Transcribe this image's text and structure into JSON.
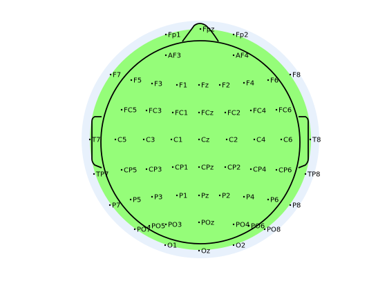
{
  "colors": {
    "background": "#ffffff",
    "halo": "#e8f1fc",
    "head_fill": "#95fd79",
    "outline": "#000000",
    "dot": "#000000",
    "text": "#000000"
  },
  "electrodes": [
    {
      "label": "Fpz",
      "row": "frontopolar",
      "col": "midline"
    },
    {
      "label": "Fp1",
      "row": "frontopolar",
      "col": "left-1"
    },
    {
      "label": "Fp2",
      "row": "frontopolar",
      "col": "right-1"
    },
    {
      "label": "AF3",
      "row": "anterior-frontal",
      "col": "left-2"
    },
    {
      "label": "AF4",
      "row": "anterior-frontal",
      "col": "right-2"
    },
    {
      "label": "F7",
      "row": "frontal",
      "col": "left-5"
    },
    {
      "label": "F5",
      "row": "frontal",
      "col": "left-4"
    },
    {
      "label": "F3",
      "row": "frontal",
      "col": "left-3"
    },
    {
      "label": "F1",
      "row": "frontal",
      "col": "left-2"
    },
    {
      "label": "Fz",
      "row": "frontal",
      "col": "midline"
    },
    {
      "label": "F2",
      "row": "frontal",
      "col": "right-2"
    },
    {
      "label": "F4",
      "row": "frontal",
      "col": "right-3"
    },
    {
      "label": "F6",
      "row": "frontal",
      "col": "right-4"
    },
    {
      "label": "F8",
      "row": "frontal",
      "col": "right-5"
    },
    {
      "label": "FC5",
      "row": "fronto-central",
      "col": "left-3"
    },
    {
      "label": "FC3",
      "row": "fronto-central",
      "col": "left-2"
    },
    {
      "label": "FC1",
      "row": "fronto-central",
      "col": "left-1"
    },
    {
      "label": "FCz",
      "row": "fronto-central",
      "col": "midline"
    },
    {
      "label": "FC2",
      "row": "fronto-central",
      "col": "right-1"
    },
    {
      "label": "FC4",
      "row": "fronto-central",
      "col": "right-2"
    },
    {
      "label": "FC6",
      "row": "fronto-central",
      "col": "right-3"
    },
    {
      "label": "T7",
      "row": "central",
      "col": "left-4"
    },
    {
      "label": "C5",
      "row": "central",
      "col": "left-3"
    },
    {
      "label": "C3",
      "row": "central",
      "col": "left-2"
    },
    {
      "label": "C1",
      "row": "central",
      "col": "left-1"
    },
    {
      "label": "Cz",
      "row": "central",
      "col": "midline"
    },
    {
      "label": "C2",
      "row": "central",
      "col": "right-1"
    },
    {
      "label": "C4",
      "row": "central",
      "col": "right-2"
    },
    {
      "label": "C6",
      "row": "central",
      "col": "right-3"
    },
    {
      "label": "T8",
      "row": "central",
      "col": "right-4"
    },
    {
      "label": "CP5",
      "row": "centro-parietal",
      "col": "left-3"
    },
    {
      "label": "CP3",
      "row": "centro-parietal",
      "col": "left-2"
    },
    {
      "label": "CP1",
      "row": "centro-parietal",
      "col": "left-1"
    },
    {
      "label": "CPz",
      "row": "centro-parietal",
      "col": "midline"
    },
    {
      "label": "CP2",
      "row": "centro-parietal",
      "col": "right-1"
    },
    {
      "label": "CP4",
      "row": "centro-parietal",
      "col": "right-2"
    },
    {
      "label": "CP6",
      "row": "centro-parietal",
      "col": "right-3"
    },
    {
      "label": "TP7",
      "row": "centro-parietal",
      "col": "left-4"
    },
    {
      "label": "TP8",
      "row": "centro-parietal",
      "col": "right-4"
    },
    {
      "label": "P7",
      "row": "parietal",
      "col": "left-5"
    },
    {
      "label": "P5",
      "row": "parietal",
      "col": "left-4"
    },
    {
      "label": "P3",
      "row": "parietal",
      "col": "left-3"
    },
    {
      "label": "P1",
      "row": "parietal",
      "col": "left-2"
    },
    {
      "label": "Pz",
      "row": "parietal",
      "col": "midline"
    },
    {
      "label": "P2",
      "row": "parietal",
      "col": "right-2"
    },
    {
      "label": "P4",
      "row": "parietal",
      "col": "right-3"
    },
    {
      "label": "P6",
      "row": "parietal",
      "col": "right-4"
    },
    {
      "label": "P8",
      "row": "parietal",
      "col": "right-5"
    },
    {
      "label": "PO7",
      "row": "parieto-occipital",
      "col": "left-5"
    },
    {
      "label": "PO5",
      "row": "parieto-occipital",
      "col": "left-4"
    },
    {
      "label": "PO3",
      "row": "parieto-occipital",
      "col": "left-3"
    },
    {
      "label": "POz",
      "row": "parieto-occipital",
      "col": "midline"
    },
    {
      "label": "PO4",
      "row": "parieto-occipital",
      "col": "right-3"
    },
    {
      "label": "PO6",
      "row": "parieto-occipital",
      "col": "right-4"
    },
    {
      "label": "PO8",
      "row": "parieto-occipital",
      "col": "right-5"
    },
    {
      "label": "O1",
      "row": "occipital",
      "col": "left-1"
    },
    {
      "label": "Oz",
      "row": "occipital",
      "col": "midline"
    },
    {
      "label": "O2",
      "row": "occipital",
      "col": "right-1"
    }
  ]
}
